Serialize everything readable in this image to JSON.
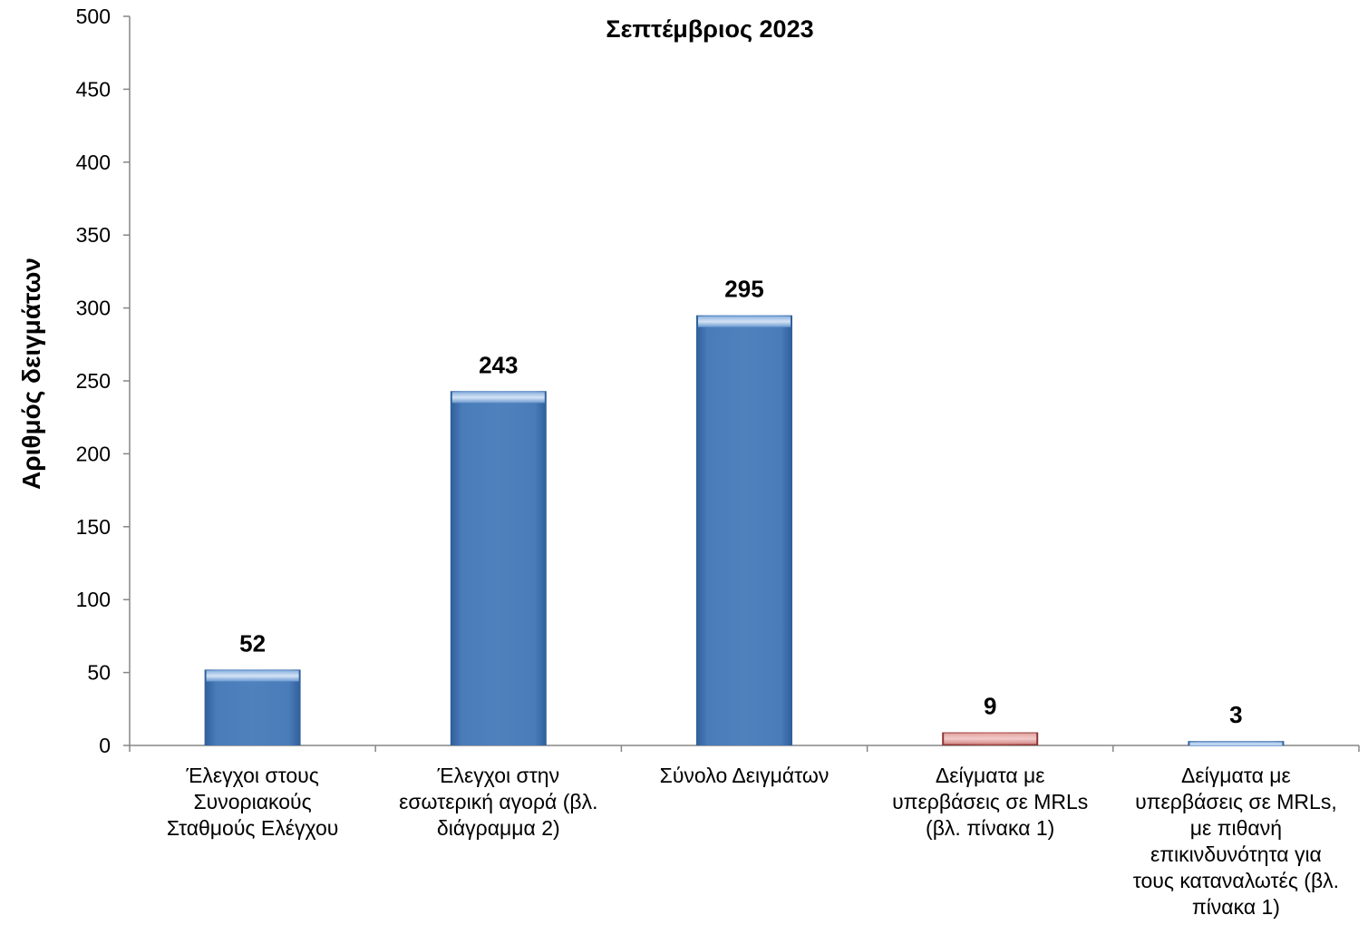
{
  "chart_data": {
    "type": "bar",
    "title": "Σεπτέμβριος 2023",
    "xlabel": "",
    "ylabel": "Αριθμός δειγμάτων",
    "ylim": [
      0,
      500
    ],
    "yticks": [
      0,
      50,
      100,
      150,
      200,
      250,
      300,
      350,
      400,
      450,
      500
    ],
    "grid": false,
    "legend": "none",
    "categories": [
      "Έλεγχοι στους Συνοριακούς Σταθμούς Ελέγχου",
      "Έλεγχοι στην εσωτερική αγορά (βλ. διάγραμμα 2)",
      "Σύνολο Δειγμάτων",
      "Δείγματα με υπερβάσεις σε MRLs (βλ. πίνακα 1)",
      "Δείγματα με υπερβάσεις σε MRLs, με πιθανή επικινδυνότητα για τους καταναλωτές (βλ. πίνακα 1)"
    ],
    "category_lines": [
      [
        "Έλεγχοι στους",
        "Συνοριακούς",
        "Σταθμούς Ελέγχου"
      ],
      [
        "Έλεγχοι στην",
        "εσωτερική αγορά (βλ.",
        "διάγραμμα 2)"
      ],
      [
        "Σύνολο Δειγμάτων"
      ],
      [
        "Δείγματα με",
        "υπερβάσεις σε MRLs",
        "(βλ. πίνακα 1)"
      ],
      [
        "Δείγματα με",
        "υπερβάσεις σε MRLs,",
        "με πιθανή",
        "επικινδυνότητα για",
        "τους καταναλωτές (βλ.",
        "πίνακα 1)"
      ]
    ],
    "values": [
      52,
      243,
      295,
      9,
      3
    ],
    "data_labels": [
      "52",
      "243",
      "295",
      "9",
      "3"
    ],
    "colors": [
      "#4F81BD",
      "#4F81BD",
      "#4F81BD",
      "#C0504D",
      "#4F81BD"
    ]
  }
}
